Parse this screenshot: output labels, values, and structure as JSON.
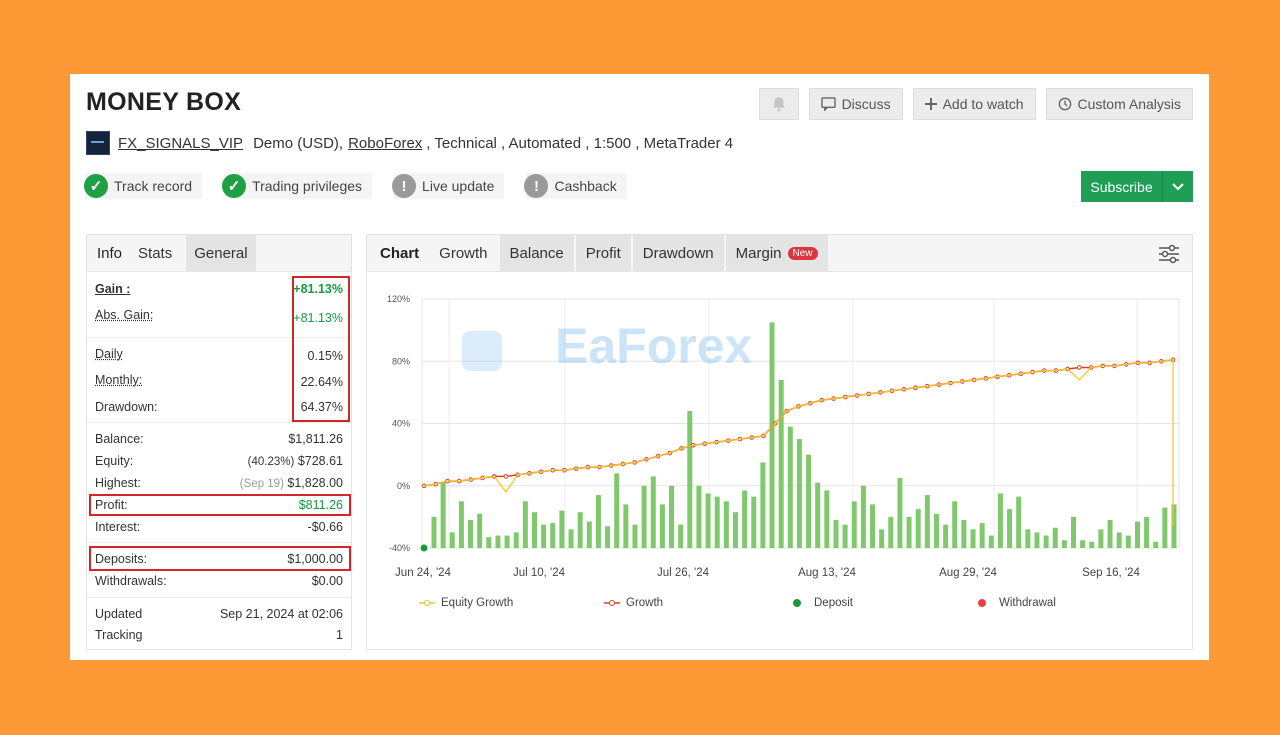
{
  "page": {
    "title": "MONEY BOX",
    "buttons": {
      "discuss": "Discuss",
      "add_to_watch": "Add to watch",
      "custom_analysis": "Custom Analysis",
      "subscribe": "Subscribe"
    },
    "account": {
      "owner": "FX_SIGNALS_VIP",
      "type": "Demo (USD),",
      "broker": "RoboForex",
      "details": ", Technical , Automated , 1:500 , MetaTrader 4"
    },
    "badges": [
      {
        "label": "Track record",
        "status": "check"
      },
      {
        "label": "Trading privileges",
        "status": "check"
      },
      {
        "label": "Live update",
        "status": "warning"
      },
      {
        "label": "Cashback",
        "status": "warning"
      }
    ],
    "colors": {
      "accent_green": "#1f9f55",
      "highlight_red": "#d42626",
      "background": "#fd9a35"
    }
  },
  "left_tabs": [
    "Info",
    "Stats",
    "General"
  ],
  "stats": {
    "gain": {
      "label": "Gain :",
      "value": "+81.13%"
    },
    "abs_gain": {
      "label": "Abs. Gain:",
      "value": "+81.13%"
    },
    "daily": {
      "label": "Daily",
      "value": "0.15%"
    },
    "monthly": {
      "label": "Monthly:",
      "value": "22.64%"
    },
    "drawdown": {
      "label": "Drawdown:",
      "value": "64.37%"
    },
    "balance": {
      "label": "Balance:",
      "value": "$1,811.26"
    },
    "equity": {
      "label": "Equity:",
      "pct": "(40.23%)",
      "value": "$728.61"
    },
    "highest": {
      "label": "Highest:",
      "date": "(Sep 19)",
      "value": "$1,828.00"
    },
    "profit": {
      "label": "Profit:",
      "value": "$811.26"
    },
    "interest": {
      "label": "Interest:",
      "value": "-$0.66"
    },
    "deposits": {
      "label": "Deposits:",
      "value": "$1,000.00"
    },
    "withdrawals": {
      "label": "Withdrawals:",
      "value": "$0.00"
    },
    "updated": {
      "label": "Updated",
      "value": "Sep 21, 2024 at 02:06"
    },
    "tracking": {
      "label": "Tracking",
      "value": "1"
    }
  },
  "chart_tabs": {
    "chart": "Chart",
    "growth": "Growth",
    "balance": "Balance",
    "profit": "Profit",
    "drawdown": "Drawdown",
    "margin": "Margin",
    "new_badge": "New"
  },
  "watermark": "EaForex",
  "chart_data": {
    "type": "bar",
    "y_ticks": [
      "120%",
      "80%",
      "40%",
      "0%",
      "-40%"
    ],
    "ylim": [
      -40,
      120
    ],
    "x_ticks": [
      "Jun 24, '24",
      "Jul 10, '24",
      "Jul 26, '24",
      "Aug 13, '24",
      "Aug 29, '24",
      "Sep 16, '24"
    ],
    "legend": [
      "Equity Growth",
      "Growth",
      "Deposit",
      "Withdrawal"
    ],
    "growth": [
      0,
      1,
      3,
      3,
      4,
      5,
      6,
      6,
      7,
      8,
      9,
      10,
      10,
      11,
      12,
      12,
      13,
      14,
      15,
      17,
      19,
      21,
      24,
      26,
      27,
      28,
      29,
      30,
      31,
      32,
      40,
      48,
      51,
      53,
      55,
      56,
      57,
      58,
      59,
      60,
      61,
      62,
      63,
      64,
      65,
      66,
      67,
      68,
      69,
      70,
      71,
      72,
      73,
      74,
      74,
      75,
      76,
      76,
      77,
      77,
      78,
      79,
      79,
      80,
      81
    ],
    "equity_growth": [
      0,
      1,
      3,
      3,
      4,
      5,
      6,
      -4,
      7,
      8,
      9,
      10,
      10,
      11,
      12,
      12,
      13,
      14,
      15,
      17,
      19,
      21,
      24,
      26,
      27,
      28,
      29,
      30,
      31,
      32,
      40,
      48,
      51,
      53,
      55,
      56,
      57,
      58,
      59,
      60,
      61,
      62,
      63,
      64,
      65,
      66,
      67,
      68,
      69,
      70,
      71,
      72,
      73,
      74,
      74,
      75,
      68,
      76,
      77,
      77,
      78,
      79,
      79,
      80,
      81,
      -26
    ],
    "bar_values": [
      -20,
      2,
      -30,
      -10,
      -22,
      -18,
      -33,
      -32,
      -32,
      -30,
      -10,
      -17,
      -25,
      -24,
      -16,
      -28,
      -17,
      -23,
      -6,
      -26,
      8,
      -12,
      -25,
      0,
      6,
      -12,
      0,
      -25,
      48,
      0,
      -5,
      -7,
      -10,
      -17,
      -3,
      -7,
      15,
      105,
      68,
      38,
      30,
      20,
      2,
      -3,
      -22,
      -25,
      -10,
      0,
      -12,
      -28,
      -20,
      5,
      -20,
      -15,
      -6,
      -18,
      -25,
      -10,
      -22,
      -28,
      -24,
      -32,
      -5,
      -15,
      -7,
      -28,
      -30,
      -32,
      -27,
      -35,
      -20,
      -35,
      -36,
      -28,
      -22,
      -30,
      -32,
      -23,
      -20,
      -36,
      -14,
      -12
    ],
    "deposit_point": {
      "x_index": 0,
      "y": -40
    }
  }
}
